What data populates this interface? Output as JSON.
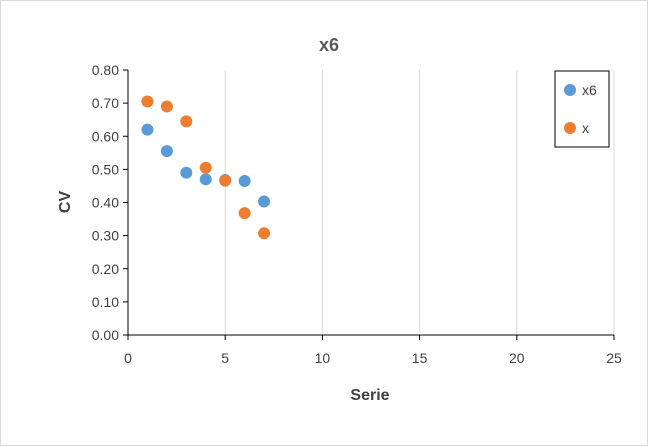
{
  "chart_data": {
    "type": "scatter",
    "title": "x6",
    "xlabel": "Serie",
    "ylabel": "CV",
    "xlim": [
      0,
      25
    ],
    "ylim": [
      0,
      0.8
    ],
    "xticks": [
      0,
      5,
      10,
      15,
      20,
      25
    ],
    "yticks": [
      0.0,
      0.1,
      0.2,
      0.3,
      0.4,
      0.5,
      0.6,
      0.7,
      0.8
    ],
    "xtick_labels": [
      "0",
      "5",
      "10",
      "15",
      "20",
      "25"
    ],
    "ytick_labels": [
      "0.00",
      "0.10",
      "0.20",
      "0.30",
      "0.40",
      "0.50",
      "0.60",
      "0.70",
      "0.80"
    ],
    "grid": "vertical",
    "legend_position": "top-right",
    "series": [
      {
        "name": "x6",
        "color": "#5B9BD5",
        "x": [
          1,
          2,
          3,
          4,
          5,
          6,
          7
        ],
        "y": [
          0.62,
          0.555,
          0.49,
          0.47,
          0.468,
          0.465,
          0.403
        ]
      },
      {
        "name": "x",
        "color": "#ED7D31",
        "x": [
          1,
          2,
          3,
          4,
          5,
          6,
          7
        ],
        "y": [
          0.705,
          0.69,
          0.645,
          0.505,
          0.466,
          0.368,
          0.307
        ]
      }
    ]
  }
}
